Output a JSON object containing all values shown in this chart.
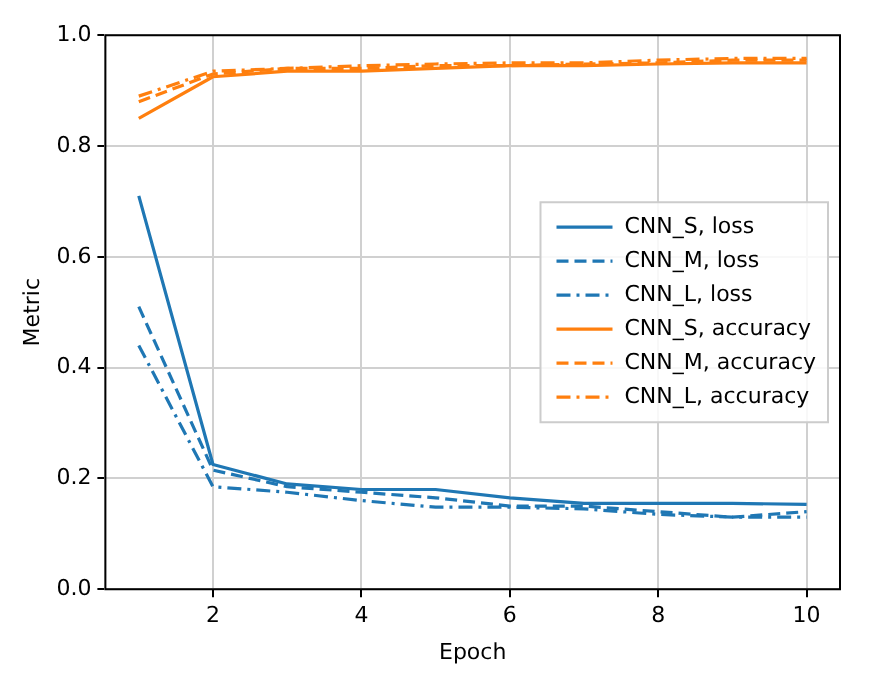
{
  "chart_data": {
    "type": "line",
    "xlabel": "Epoch",
    "ylabel": "Metric",
    "x": [
      1,
      2,
      3,
      4,
      5,
      6,
      7,
      8,
      9,
      10
    ],
    "xlim": [
      0.55,
      10.45
    ],
    "xticks": [
      2,
      4,
      6,
      8,
      10
    ],
    "ylim": [
      0,
      1
    ],
    "yticks": [
      {
        "value": 0,
        "label": "0.0"
      },
      {
        "value": 0.2,
        "label": "0.2"
      },
      {
        "value": 0.4,
        "label": "0.4"
      },
      {
        "value": 0.6,
        "label": "0.6"
      },
      {
        "value": 0.8,
        "label": "0.8"
      },
      {
        "value": 1,
        "label": "1.0"
      }
    ],
    "grid": true,
    "legend": "right",
    "marker": "none",
    "series": [
      {
        "name": "CNN_S, loss",
        "color": "#1f77b4",
        "line_style": "solid",
        "values": [
          0.71,
          0.225,
          0.19,
          0.18,
          0.18,
          0.165,
          0.155,
          0.155,
          0.155,
          0.153
        ]
      },
      {
        "name": "CNN_M, loss",
        "color": "#1f77b4",
        "line_style": "dashed",
        "values": [
          0.51,
          0.215,
          0.185,
          0.175,
          0.165,
          0.15,
          0.15,
          0.14,
          0.13,
          0.14
        ]
      },
      {
        "name": "CNN_L, loss",
        "color": "#1f77b4",
        "line_style": "dashdot",
        "values": [
          0.44,
          0.185,
          0.175,
          0.16,
          0.148,
          0.148,
          0.145,
          0.135,
          0.13,
          0.13
        ]
      },
      {
        "name": "CNN_S, accuracy",
        "color": "#ff7f0e",
        "line_style": "solid",
        "values": [
          0.85,
          0.925,
          0.935,
          0.935,
          0.94,
          0.945,
          0.945,
          0.948,
          0.95,
          0.95
        ]
      },
      {
        "name": "CNN_M, accuracy",
        "color": "#ff7f0e",
        "line_style": "dashed",
        "values": [
          0.88,
          0.93,
          0.94,
          0.94,
          0.945,
          0.945,
          0.948,
          0.95,
          0.955,
          0.955
        ]
      },
      {
        "name": "CNN_L, accuracy",
        "color": "#ff7f0e",
        "line_style": "dashdot",
        "values": [
          0.89,
          0.935,
          0.94,
          0.945,
          0.948,
          0.95,
          0.95,
          0.955,
          0.958,
          0.958
        ]
      }
    ]
  }
}
